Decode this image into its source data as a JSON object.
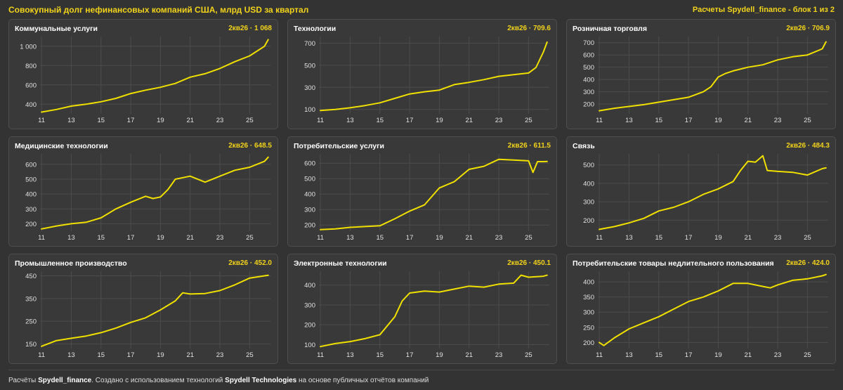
{
  "header": {
    "title": "Совокупный долг нефинансовых компаний США, млрд USD за квартал",
    "right": "Расчеты Spydell_finance - блок 1 из 2"
  },
  "footer": {
    "prefix": "Расчёты ",
    "author": "Spydell_finance",
    "middle": ". Создано с использованием технологий ",
    "tech": "Spydell Technologies",
    "suffix": " на основе публичных отчётов компаний"
  },
  "colors": {
    "line": "#f0e000",
    "accent": "#f2d31b",
    "grid": "#4c4c4c"
  },
  "chart_data": [
    {
      "type": "line",
      "title": "Коммунальные услуги",
      "last_label": "2кв26 · 1 068",
      "xticks": [
        "11",
        "13",
        "15",
        "17",
        "19",
        "21",
        "23",
        "25"
      ],
      "xlim": [
        10.9,
        26.4
      ],
      "ylim": [
        300,
        1100
      ],
      "yticks": [
        400,
        600,
        800,
        1000
      ],
      "ytick_labels": [
        "400",
        "600",
        "800",
        "1 000"
      ],
      "x": [
        11,
        12,
        13,
        14,
        15,
        16,
        17,
        18,
        19,
        20,
        21,
        22,
        23,
        24,
        25,
        26,
        26.25
      ],
      "y": [
        318,
        345,
        380,
        400,
        425,
        460,
        510,
        545,
        575,
        615,
        680,
        715,
        770,
        840,
        900,
        1000,
        1068
      ]
    },
    {
      "type": "line",
      "title": "Технологии",
      "last_label": "2кв26 · 709.6",
      "xticks": [
        "11",
        "13",
        "15",
        "17",
        "19",
        "21",
        "23",
        "25"
      ],
      "xlim": [
        10.9,
        26.4
      ],
      "ylim": [
        60,
        760
      ],
      "yticks": [
        100,
        300,
        500,
        700
      ],
      "ytick_labels": [
        "100",
        "300",
        "500",
        "700"
      ],
      "x": [
        11,
        12,
        13,
        14,
        15,
        16,
        17,
        18,
        19,
        20,
        21,
        22,
        23,
        24,
        25,
        25.5,
        26,
        26.25
      ],
      "y": [
        90,
        100,
        115,
        135,
        160,
        200,
        240,
        260,
        275,
        325,
        345,
        370,
        400,
        415,
        430,
        480,
        620,
        710
      ]
    },
    {
      "type": "line",
      "title": "Розничная торговля",
      "last_label": "2кв26 · 706.9",
      "xticks": [
        "11",
        "13",
        "15",
        "17",
        "19",
        "21",
        "23",
        "25"
      ],
      "xlim": [
        10.9,
        26.4
      ],
      "ylim": [
        120,
        750
      ],
      "yticks": [
        200,
        300,
        400,
        500,
        600,
        700
      ],
      "ytick_labels": [
        "200",
        "300",
        "400",
        "500",
        "600",
        "700"
      ],
      "x": [
        11,
        12,
        13,
        14,
        15,
        16,
        17,
        18,
        18.5,
        19,
        19.5,
        20,
        21,
        22,
        23,
        24,
        25,
        26,
        26.25
      ],
      "y": [
        145,
        165,
        180,
        195,
        215,
        235,
        255,
        300,
        340,
        420,
        450,
        470,
        500,
        520,
        560,
        585,
        600,
        650,
        707
      ]
    },
    {
      "type": "line",
      "title": "Медицинские технологии",
      "last_label": "2кв26 · 648.5",
      "xticks": [
        "11",
        "13",
        "15",
        "17",
        "19",
        "21",
        "23",
        "25"
      ],
      "xlim": [
        10.9,
        26.4
      ],
      "ylim": [
        150,
        670
      ],
      "yticks": [
        200,
        300,
        400,
        500,
        600
      ],
      "ytick_labels": [
        "200",
        "300",
        "400",
        "500",
        "600"
      ],
      "x": [
        11,
        12,
        13,
        14,
        15,
        16,
        17,
        18,
        18.5,
        19,
        19.5,
        20,
        21,
        22,
        23,
        24,
        25,
        26,
        26.25
      ],
      "y": [
        165,
        185,
        200,
        210,
        240,
        300,
        345,
        385,
        370,
        380,
        430,
        500,
        520,
        480,
        520,
        560,
        580,
        620,
        648
      ]
    },
    {
      "type": "line",
      "title": "Потребительские услуги",
      "last_label": "2кв26 · 611.5",
      "xticks": [
        "11",
        "13",
        "15",
        "17",
        "19",
        "21",
        "23",
        "25"
      ],
      "xlim": [
        10.9,
        26.4
      ],
      "ylim": [
        160,
        660
      ],
      "yticks": [
        200,
        300,
        400,
        500,
        600
      ],
      "ytick_labels": [
        "200",
        "300",
        "400",
        "500",
        "600"
      ],
      "x": [
        11,
        12,
        13,
        14,
        15,
        16,
        17,
        18,
        19,
        19.5,
        20,
        21,
        22,
        23,
        24,
        25,
        25.3,
        25.6,
        26,
        26.25
      ],
      "y": [
        170,
        175,
        185,
        190,
        195,
        240,
        290,
        330,
        440,
        460,
        480,
        560,
        580,
        625,
        620,
        615,
        540,
        610,
        610,
        611
      ]
    },
    {
      "type": "line",
      "title": "Связь",
      "last_label": "2кв26 · 484.3",
      "xticks": [
        "11",
        "13",
        "15",
        "17",
        "19",
        "21",
        "23",
        "25"
      ],
      "xlim": [
        10.9,
        26.4
      ],
      "ylim": [
        140,
        560
      ],
      "yticks": [
        200,
        300,
        400,
        500
      ],
      "ytick_labels": [
        "200",
        "300",
        "400",
        "500"
      ],
      "x": [
        11,
        12,
        13,
        14,
        15,
        16,
        17,
        18,
        19,
        20,
        20.5,
        21,
        21.5,
        22,
        22.3,
        23,
        24,
        25,
        26,
        26.25
      ],
      "y": [
        150,
        165,
        185,
        210,
        250,
        270,
        300,
        340,
        370,
        410,
        470,
        520,
        515,
        550,
        470,
        465,
        460,
        445,
        480,
        484
      ]
    },
    {
      "type": "line",
      "title": "Промышленное производство",
      "last_label": "2кв26 · 452.0",
      "xticks": [
        "11",
        "13",
        "15",
        "17",
        "19",
        "21",
        "23",
        "25"
      ],
      "xlim": [
        10.9,
        26.4
      ],
      "ylim": [
        130,
        470
      ],
      "yticks": [
        150,
        250,
        350,
        450
      ],
      "ytick_labels": [
        "150",
        "250",
        "350",
        "450"
      ],
      "x": [
        11,
        12,
        13,
        14,
        15,
        16,
        17,
        18,
        19,
        20,
        20.5,
        21,
        22,
        23,
        24,
        25,
        26,
        26.25
      ],
      "y": [
        140,
        165,
        175,
        185,
        200,
        220,
        245,
        265,
        300,
        340,
        375,
        370,
        372,
        385,
        410,
        440,
        450,
        452
      ]
    },
    {
      "type": "line",
      "title": "Электронные технологии",
      "last_label": "2кв26 · 450.1",
      "xticks": [
        "11",
        "13",
        "15",
        "17",
        "19",
        "21",
        "23",
        "25"
      ],
      "xlim": [
        10.9,
        26.4
      ],
      "ylim": [
        80,
        470
      ],
      "yticks": [
        100,
        200,
        300,
        400
      ],
      "ytick_labels": [
        "100",
        "200",
        "300",
        "400"
      ],
      "x": [
        11,
        12,
        13,
        14,
        15,
        16,
        16.5,
        17,
        18,
        19,
        20,
        21,
        22,
        23,
        24,
        24.5,
        25,
        26,
        26.25
      ],
      "y": [
        90,
        105,
        115,
        130,
        150,
        240,
        320,
        360,
        370,
        365,
        380,
        395,
        390,
        405,
        410,
        450,
        440,
        445,
        450
      ]
    },
    {
      "type": "line",
      "title": "Потребительские товары недлительного пользования",
      "last_label": "2кв26 · 424.0",
      "xticks": [
        "11",
        "13",
        "15",
        "17",
        "19",
        "21",
        "23",
        "25"
      ],
      "xlim": [
        10.9,
        26.4
      ],
      "ylim": [
        180,
        435
      ],
      "yticks": [
        200,
        250,
        300,
        350,
        400
      ],
      "ytick_labels": [
        "200",
        "250",
        "300",
        "350",
        "400"
      ],
      "x": [
        11,
        11.3,
        12,
        13,
        14,
        15,
        16,
        17,
        18,
        19,
        20,
        21,
        22,
        22.5,
        23,
        24,
        25,
        26,
        26.25
      ],
      "y": [
        200,
        190,
        215,
        245,
        265,
        285,
        310,
        335,
        350,
        370,
        395,
        395,
        385,
        380,
        390,
        405,
        410,
        420,
        424
      ]
    }
  ]
}
